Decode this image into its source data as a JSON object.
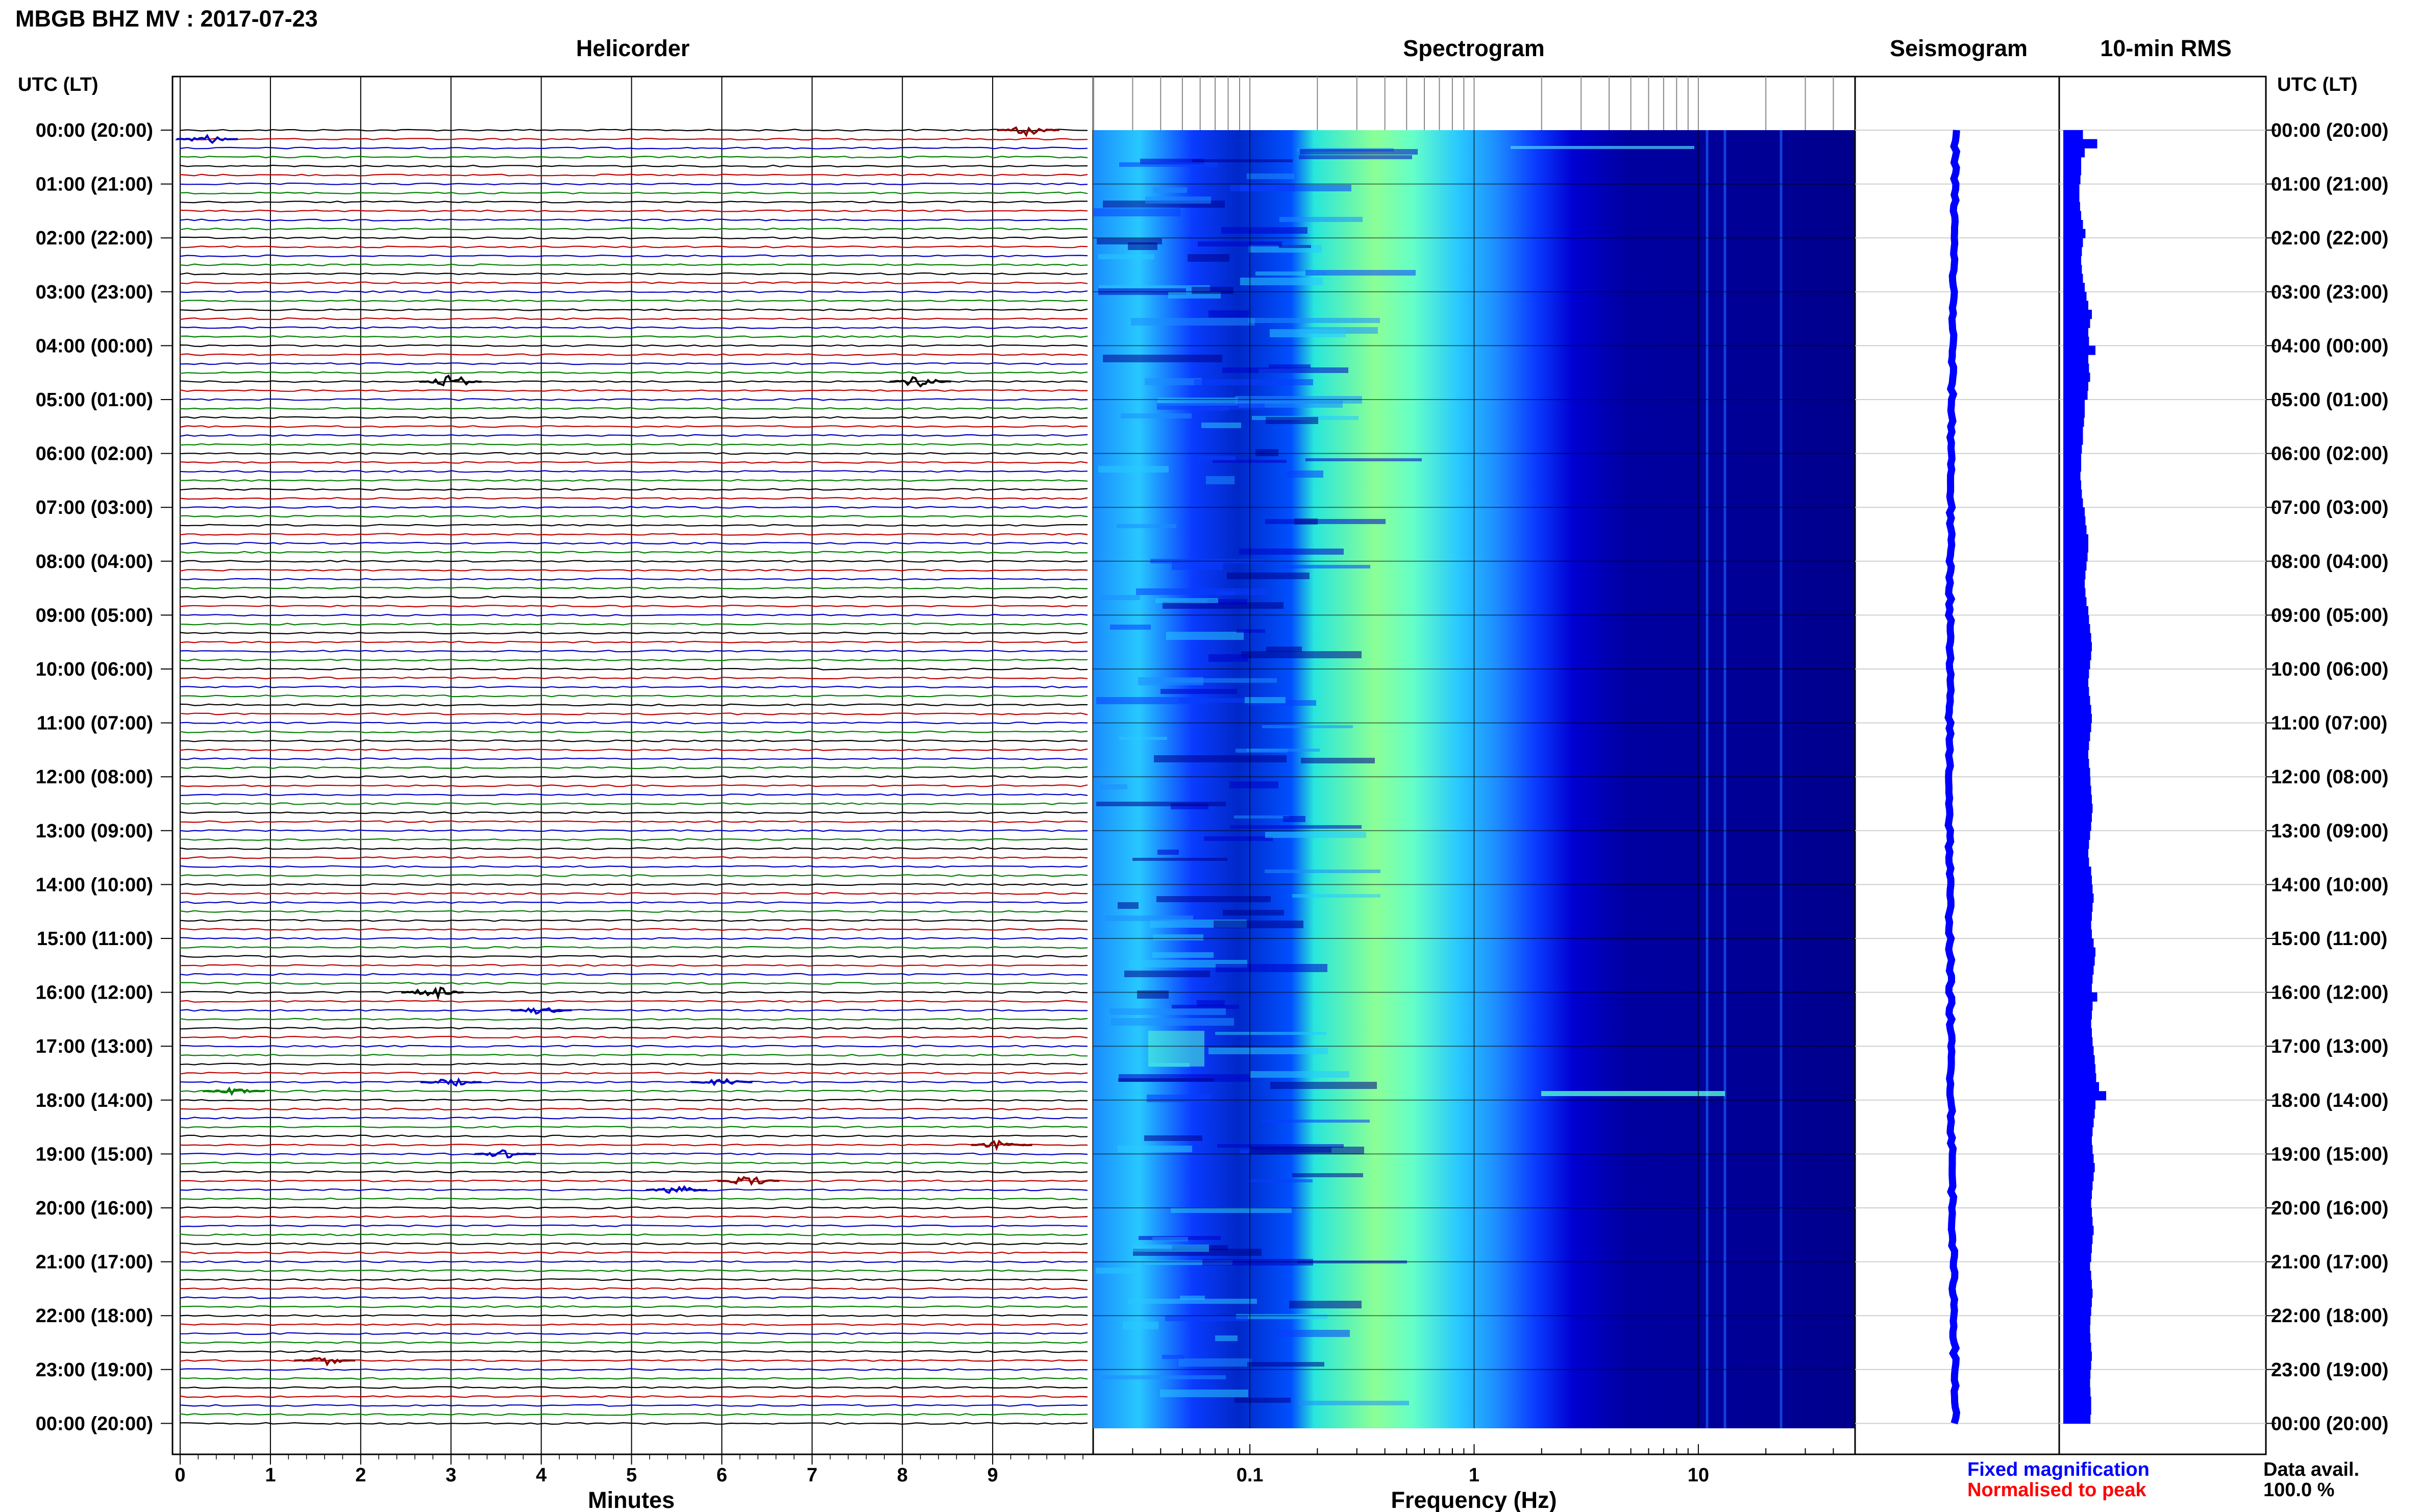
{
  "header": {
    "title": "MBGB BHZ MV : 2017-07-23"
  },
  "panels": {
    "helicorder": "Helicorder",
    "spectrogram": "Spectrogram",
    "seismogram": "Seismogram",
    "rms": "10-min RMS"
  },
  "axes": {
    "utc_left": "UTC (LT)",
    "utc_right": "UTC (LT)",
    "minutes_label": "Minutes",
    "frequency_label": "Frequency (Hz)"
  },
  "legend": {
    "fixed": "Fixed magnification",
    "normalised": "Normalised to peak",
    "data_avail_label": "Data avail.",
    "data_avail_value": "100.0 %"
  },
  "colors": {
    "trace_cycle": [
      "#000000",
      "#c00000",
      "#0000c8",
      "#008000"
    ],
    "fixed_magnification": "#0000ff",
    "normalised_to_peak": "#ff0000",
    "seismogram_trace": "#0000ff",
    "rms_fill": "#0000ff",
    "spectrogram_palette": [
      "#00008c",
      "#0000c8",
      "#0a3cff",
      "#1e8cff",
      "#28c8ff",
      "#50ffd2",
      "#a0ff8c"
    ]
  },
  "chart_data": [
    {
      "type": "line",
      "name": "helicorder",
      "xlabel": "Minutes",
      "xlim": [
        0,
        10
      ],
      "x_ticks": [
        0,
        1,
        2,
        3,
        4,
        5,
        6,
        7,
        8,
        9
      ],
      "lines_per_hour": 6,
      "minutes_per_line": 10,
      "hour_labels": [
        "00:00 (20:00)",
        "01:00 (21:00)",
        "02:00 (22:00)",
        "03:00 (23:00)",
        "04:00 (00:00)",
        "05:00 (01:00)",
        "06:00 (02:00)",
        "07:00 (03:00)",
        "08:00 (04:00)",
        "09:00 (05:00)",
        "10:00 (06:00)",
        "11:00 (07:00)",
        "12:00 (08:00)",
        "13:00 (09:00)",
        "14:00 (10:00)",
        "15:00 (11:00)",
        "16:00 (12:00)",
        "17:00 (13:00)",
        "18:00 (14:00)",
        "19:00 (15:00)",
        "20:00 (16:00)",
        "21:00 (17:00)",
        "22:00 (18:00)",
        "23:00 (19:00)",
        "00:00 (20:00)"
      ],
      "events": [
        {
          "line": 0,
          "minute": 9.4,
          "amp": 2.5,
          "color": "#8b0000"
        },
        {
          "line": 1,
          "minute": 0.3,
          "amp": 2.0,
          "color": "#0000c8"
        },
        {
          "line": 28,
          "minute": 3.0,
          "amp": 3.5,
          "color": "#000000"
        },
        {
          "line": 28,
          "minute": 8.2,
          "amp": 3.0,
          "color": "#000000"
        },
        {
          "line": 96,
          "minute": 2.8,
          "amp": 3.0,
          "color": "#000000"
        },
        {
          "line": 98,
          "minute": 4.0,
          "amp": 1.8,
          "color": "#0000c8"
        },
        {
          "line": 106,
          "minute": 3.0,
          "amp": 1.8,
          "color": "#0000c8"
        },
        {
          "line": 106,
          "minute": 6.0,
          "amp": 1.5,
          "color": "#0000c8"
        },
        {
          "line": 107,
          "minute": 0.6,
          "amp": 1.5,
          "color": "#008000"
        },
        {
          "line": 113,
          "minute": 9.1,
          "amp": 2.5,
          "color": "#8b0000"
        },
        {
          "line": 114,
          "minute": 3.6,
          "amp": 2.0,
          "color": "#0000c8"
        },
        {
          "line": 117,
          "minute": 6.3,
          "amp": 2.5,
          "color": "#8b0000"
        },
        {
          "line": 118,
          "minute": 5.5,
          "amp": 2.0,
          "color": "#0000c8"
        },
        {
          "line": 137,
          "minute": 1.6,
          "amp": 2.0,
          "color": "#8b0000"
        }
      ]
    },
    {
      "type": "heatmap",
      "name": "spectrogram",
      "xlabel": "Frequency (Hz)",
      "x_scale": "log",
      "xlim": [
        0.02,
        50
      ],
      "x_ticks": [
        0.1,
        1,
        10
      ],
      "x_tick_labels": [
        "0.1",
        "1",
        "10"
      ]
    },
    {
      "type": "line",
      "name": "seismogram",
      "x": "time (UTC hours)",
      "trace_shape": "slow drift, minimum near 12:00–13:00"
    },
    {
      "type": "bar",
      "name": "10-min RMS",
      "relative_values": [
        0.55,
        0.95,
        0.6,
        0.5,
        0.5,
        0.48,
        0.45,
        0.45,
        0.47,
        0.5,
        0.55,
        0.62,
        0.55,
        0.52,
        0.5,
        0.52,
        0.55,
        0.6,
        0.65,
        0.7,
        0.8,
        0.75,
        0.7,
        0.72,
        0.9,
        0.7,
        0.72,
        0.75,
        0.7,
        0.68,
        0.6,
        0.6,
        0.58,
        0.55,
        0.55,
        0.52,
        0.5,
        0.5,
        0.48,
        0.5,
        0.52,
        0.55,
        0.6,
        0.62,
        0.65,
        0.7,
        0.7,
        0.68,
        0.65,
        0.62,
        0.6,
        0.62,
        0.65,
        0.7,
        0.72,
        0.75,
        0.78,
        0.8,
        0.78,
        0.75,
        0.72,
        0.7,
        0.72,
        0.75,
        0.78,
        0.8,
        0.78,
        0.75,
        0.72,
        0.7,
        0.72,
        0.75,
        0.76,
        0.78,
        0.8,
        0.82,
        0.8,
        0.78,
        0.75,
        0.72,
        0.7,
        0.72,
        0.78,
        0.8,
        0.82,
        0.85,
        0.82,
        0.8,
        0.78,
        0.8,
        0.85,
        0.9,
        0.88,
        0.85,
        0.82,
        0.8,
        0.95,
        0.82,
        0.8,
        0.78,
        0.8,
        0.82,
        0.85,
        0.88,
        0.9,
        0.92,
        1.0,
        1.2,
        0.9,
        0.88,
        0.85,
        0.82,
        0.8,
        0.82,
        0.85,
        0.88,
        0.85,
        0.82,
        0.8,
        0.78,
        0.8,
        0.82,
        0.85,
        0.82,
        0.8,
        0.78,
        0.75,
        0.78,
        0.8,
        0.82,
        0.8,
        0.78,
        0.76,
        0.75,
        0.76,
        0.78,
        0.8,
        0.78,
        0.76,
        0.75,
        0.76,
        0.78,
        0.78,
        0.76
      ]
    }
  ]
}
